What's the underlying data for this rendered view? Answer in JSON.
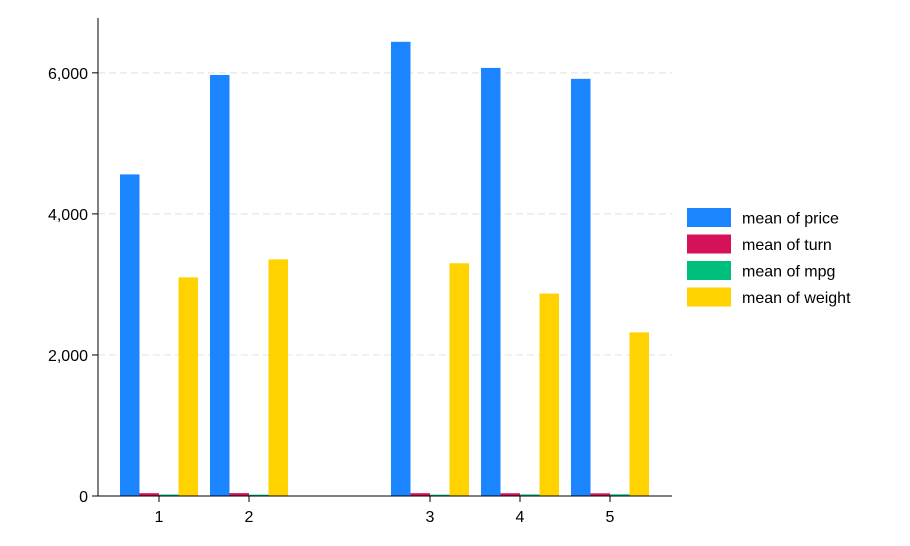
{
  "chart_data": {
    "type": "bar",
    "categories": [
      "1",
      "2",
      "3",
      "4",
      "5"
    ],
    "series": [
      {
        "name": "mean of price",
        "color": "#1A85FF",
        "values": [
          4560,
          5970,
          6440,
          6070,
          5915
        ]
      },
      {
        "name": "mean of turn",
        "color": "#D41159",
        "values": [
          40,
          41,
          40,
          39,
          38
        ]
      },
      {
        "name": "mean of mpg",
        "color": "#00BF7D",
        "values": [
          21,
          19,
          19,
          22,
          24
        ]
      },
      {
        "name": "mean of weight",
        "color": "#FFD200",
        "values": [
          3100,
          3355,
          3300,
          2870,
          2320
        ]
      }
    ],
    "ylim": [
      0,
      6650
    ],
    "yticks": [
      0,
      2000,
      4000,
      6000
    ],
    "ytick_labels": [
      "0",
      "2,000",
      "4,000",
      "6,000"
    ],
    "grid": "horizontal dashed",
    "legend_position": "right"
  }
}
